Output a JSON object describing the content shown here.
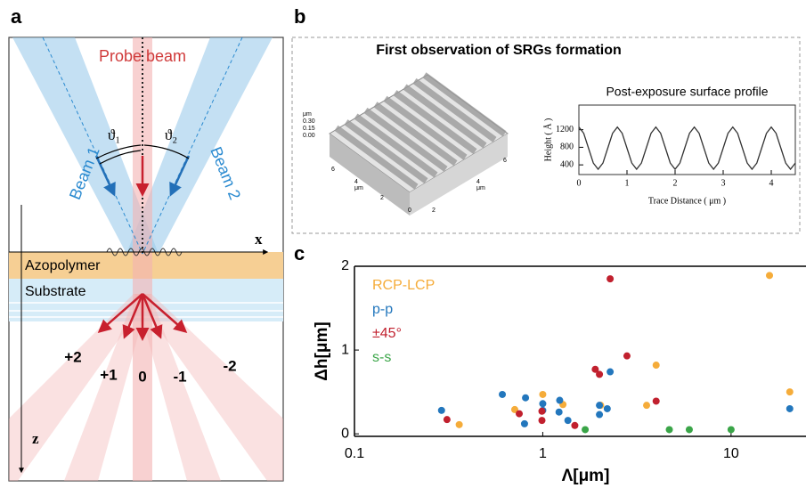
{
  "panel_labels": {
    "a": "a",
    "b": "b",
    "c": "c"
  },
  "panel_a": {
    "probe_beam": "Probe beam",
    "beam_1": "Beam 1",
    "beam_2": "Beam 2",
    "theta_1": "ϑ₁",
    "theta_2": "ϑ₂",
    "x_axis": "x",
    "z_axis": "z",
    "azopolymer": "Azopolymer",
    "substrate": "Substrate",
    "orders": [
      "+2",
      "+1",
      "0",
      "-1",
      "-2"
    ]
  },
  "panel_b": {
    "title": "First observation of SRGs formation",
    "afm_z_unit": "μm",
    "afm_z_ticks": [
      "0.30",
      "0.15",
      "0.00"
    ],
    "afm_x_ticks": [
      "6",
      "4",
      "2",
      "0"
    ],
    "afm_x_unit": "μm",
    "afm_y_ticks": [
      "2",
      "4",
      "6"
    ],
    "afm_y_unit": "μm"
  },
  "chart_data": [
    {
      "type": "line",
      "title": "Post-exposure surface profile",
      "x_label": "Trace Distance ( μm )",
      "y_label": "Height ( Å )",
      "color": "#333333",
      "x": [
        0,
        0.1,
        0.2,
        0.3,
        0.4,
        0.5,
        0.6,
        0.7,
        0.8,
        0.9,
        1,
        1.1,
        1.2,
        1.3,
        1.4,
        1.5,
        1.6,
        1.7,
        1.8,
        1.9,
        2,
        2.1,
        2.2,
        2.3,
        2.4,
        2.5,
        2.6,
        2.7,
        2.8,
        2.9,
        3,
        3.1,
        3.2,
        3.3,
        3.4,
        3.5,
        3.6,
        3.7,
        3.8,
        3.9,
        4,
        4.1,
        4.2,
        4.3,
        4.4,
        4.5
      ],
      "values": [
        1260,
        1119,
        780,
        441,
        300,
        441,
        780,
        1119,
        1260,
        1119,
        780,
        441,
        300,
        441,
        780,
        1119,
        1260,
        1119,
        780,
        441,
        300,
        441,
        780,
        1119,
        1260,
        1119,
        780,
        441,
        300,
        441,
        780,
        1119,
        1260,
        1119,
        780,
        441,
        300,
        441,
        780,
        1119,
        1260,
        1119,
        780,
        441,
        300,
        441
      ],
      "xlim": [
        0,
        4.5
      ],
      "xticks": [
        0,
        1,
        2,
        3,
        4
      ],
      "ylim": [
        180,
        1760
      ],
      "yticks": [
        400,
        800,
        1200
      ]
    },
    {
      "type": "scatter",
      "x_label": "Λ[μm]",
      "y_label": "Δh[μm]",
      "xscale": "log",
      "xlim": [
        0.1,
        25
      ],
      "xticks": [
        0.1,
        1,
        10
      ],
      "ylim": [
        -0.03,
        2
      ],
      "yticks": [
        0,
        1,
        2
      ],
      "legend": "upper left",
      "series": [
        {
          "name": "RCP-LCP",
          "color": "#f5ac3a",
          "x": [
            0.36,
            0.71,
            1.0,
            1.28,
            2.03,
            3.56,
            4.0,
            16,
            20.5
          ],
          "values": [
            0.11,
            0.29,
            0.47,
            0.35,
            0.34,
            0.34,
            0.82,
            1.89,
            0.5
          ]
        },
        {
          "name": "p-p",
          "color": "#2377bd",
          "x": [
            0.29,
            0.61,
            0.81,
            0.8,
            1.0,
            1.0,
            1.23,
            1.22,
            1.36,
            2.0,
            2.0,
            2.2,
            2.28,
            20.5
          ],
          "values": [
            0.28,
            0.47,
            0.43,
            0.12,
            0.36,
            0.28,
            0.4,
            0.26,
            0.16,
            0.34,
            0.23,
            0.3,
            0.74,
            0.3
          ]
        },
        {
          "name": "±45°",
          "color": "#c1202e",
          "x": [
            0.31,
            0.75,
            0.99,
            0.99,
            1.48,
            1.9,
            2.0,
            2.28,
            2.8,
            4.0
          ],
          "values": [
            0.17,
            0.24,
            0.27,
            0.16,
            0.1,
            0.77,
            0.71,
            1.85,
            0.93,
            0.39
          ]
        },
        {
          "name": "s-s",
          "color": "#3aa548",
          "x": [
            1.68,
            4.7,
            6.0,
            10
          ],
          "values": [
            0.05,
            0.05,
            0.05,
            0.05
          ]
        }
      ]
    }
  ]
}
